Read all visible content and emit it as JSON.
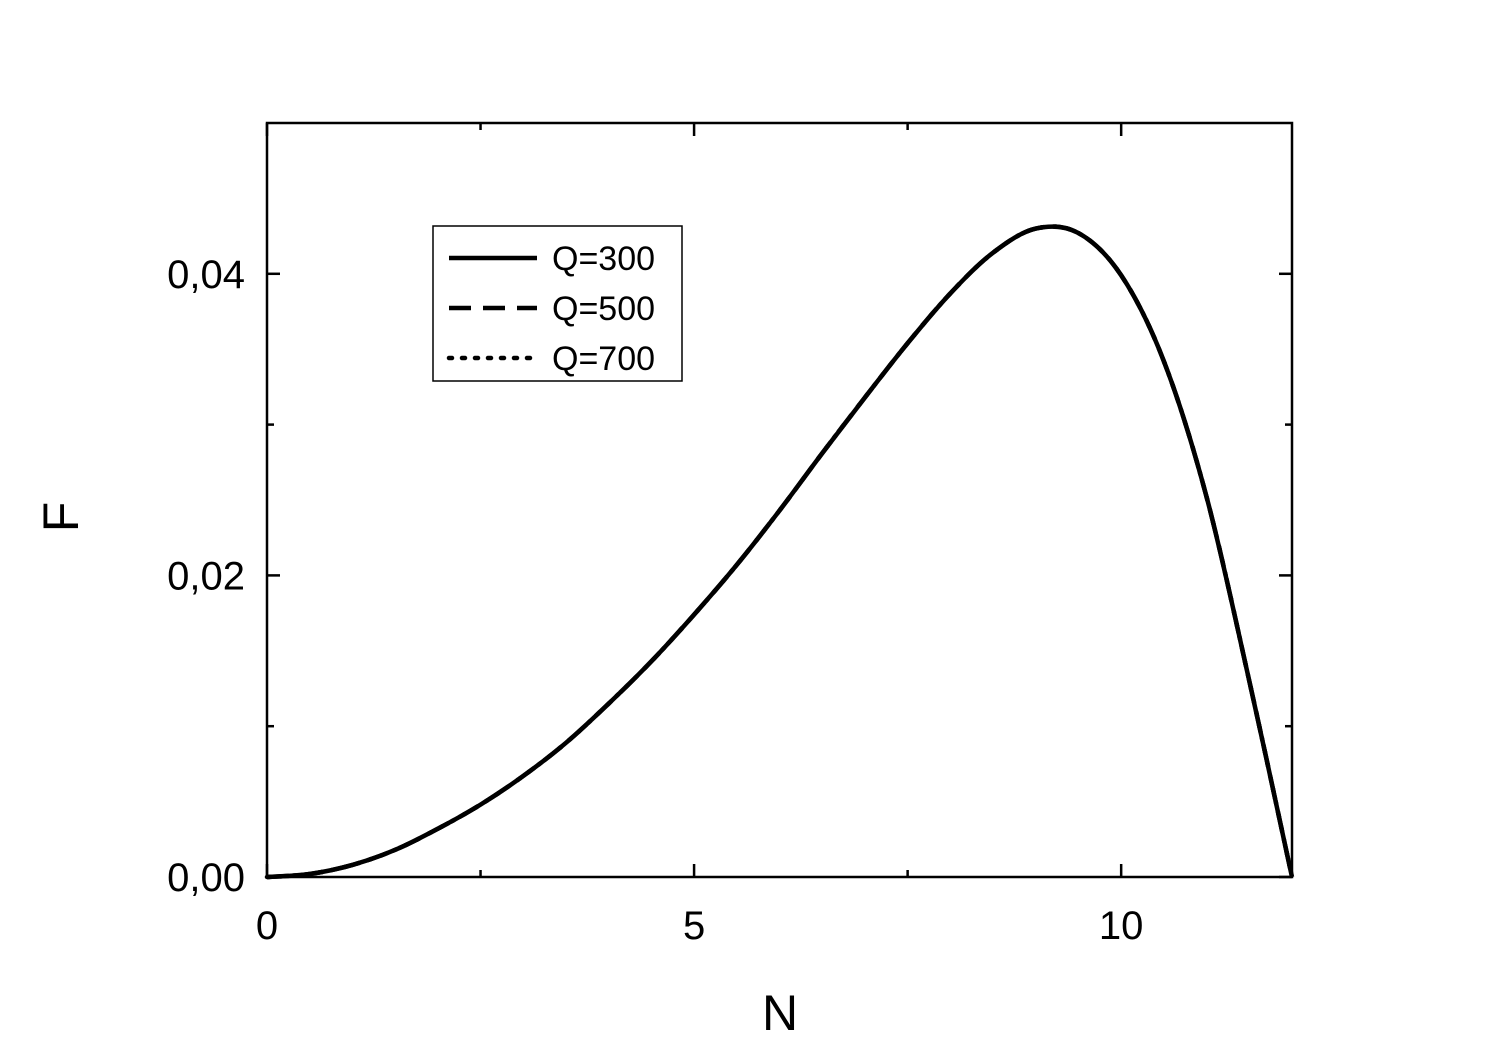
{
  "chart_data": {
    "type": "line",
    "title": "",
    "xlabel": "N",
    "ylabel": "F",
    "xlim": [
      0,
      12
    ],
    "ylim": [
      0,
      0.05
    ],
    "x_ticks": [
      {
        "value": 0,
        "label": "0"
      },
      {
        "value": 5,
        "label": "5"
      },
      {
        "value": 10,
        "label": "10"
      }
    ],
    "x_minor_ticks": [
      2.5,
      7.5
    ],
    "y_ticks": [
      {
        "value": 0,
        "label": "0,00"
      },
      {
        "value": 0.02,
        "label": "0,02"
      },
      {
        "value": 0.04,
        "label": "0,04"
      }
    ],
    "y_minor_ticks": [
      0.01,
      0.03
    ],
    "grid": false,
    "legend_position": "top-left",
    "series": [
      {
        "name": "Q=300",
        "style": "solid",
        "x": [
          0,
          0.5,
          1,
          1.5,
          2,
          2.5,
          3,
          3.5,
          4,
          4.5,
          5,
          5.5,
          6,
          6.5,
          7,
          7.5,
          8,
          8.5,
          9,
          9.5,
          10,
          10.5,
          11,
          11.5,
          12
        ],
        "y": [
          0,
          0.0002,
          0.0008,
          0.0018,
          0.0032,
          0.0048,
          0.0067,
          0.0089,
          0.0115,
          0.0143,
          0.0174,
          0.0207,
          0.0243,
          0.0281,
          0.0318,
          0.0354,
          0.0387,
          0.0414,
          0.043,
          0.0427,
          0.0399,
          0.0342,
          0.0252,
          0.013,
          0
        ]
      },
      {
        "name": "Q=500",
        "style": "dashed",
        "x": [
          0,
          0.5,
          1,
          1.5,
          2,
          2.5,
          3,
          3.5,
          4,
          4.5,
          5,
          5.5,
          6,
          6.5,
          7,
          7.5,
          8,
          8.5,
          9,
          9.5,
          10,
          10.5,
          11,
          11.5,
          12
        ],
        "y": [
          0,
          0.0002,
          0.0008,
          0.0018,
          0.0032,
          0.0048,
          0.0067,
          0.0089,
          0.0115,
          0.0143,
          0.0174,
          0.0207,
          0.0243,
          0.0281,
          0.0318,
          0.0354,
          0.0387,
          0.0414,
          0.043,
          0.0427,
          0.0399,
          0.0342,
          0.0252,
          0.013,
          0
        ]
      },
      {
        "name": "Q=700",
        "style": "dotted",
        "x": [
          0,
          0.5,
          1,
          1.5,
          2,
          2.5,
          3,
          3.5,
          4,
          4.5,
          5,
          5.5,
          6,
          6.5,
          7,
          7.5,
          8,
          8.5,
          9,
          9.5,
          10,
          10.5,
          11,
          11.5,
          12
        ],
        "y": [
          0,
          0.0002,
          0.0008,
          0.0018,
          0.0032,
          0.0048,
          0.0067,
          0.0089,
          0.0115,
          0.0143,
          0.0174,
          0.0207,
          0.0243,
          0.0281,
          0.0318,
          0.0354,
          0.0387,
          0.0414,
          0.043,
          0.0427,
          0.0399,
          0.0342,
          0.0252,
          0.013,
          0
        ]
      }
    ]
  }
}
